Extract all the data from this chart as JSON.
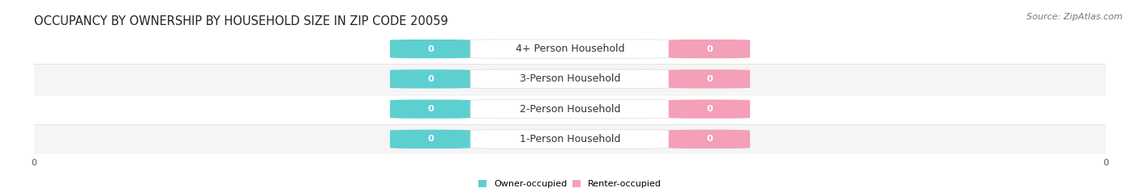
{
  "title": "OCCUPANCY BY OWNERSHIP BY HOUSEHOLD SIZE IN ZIP CODE 20059",
  "source": "Source: ZipAtlas.com",
  "categories": [
    "1-Person Household",
    "2-Person Household",
    "3-Person Household",
    "4+ Person Household"
  ],
  "owner_values": [
    0,
    0,
    0,
    0
  ],
  "renter_values": [
    0,
    0,
    0,
    0
  ],
  "owner_color": "#5ecfcf",
  "renter_color": "#f4a0b8",
  "bar_bg_color": "#efefef",
  "row_bg_even": "#f5f5f5",
  "row_bg_odd": "#ffffff",
  "legend_owner": "Owner-occupied",
  "legend_renter": "Renter-occupied",
  "title_fontsize": 10.5,
  "source_fontsize": 8,
  "label_fontsize": 8,
  "tick_fontsize": 8,
  "value_fontsize": 8,
  "category_fontsize": 9
}
